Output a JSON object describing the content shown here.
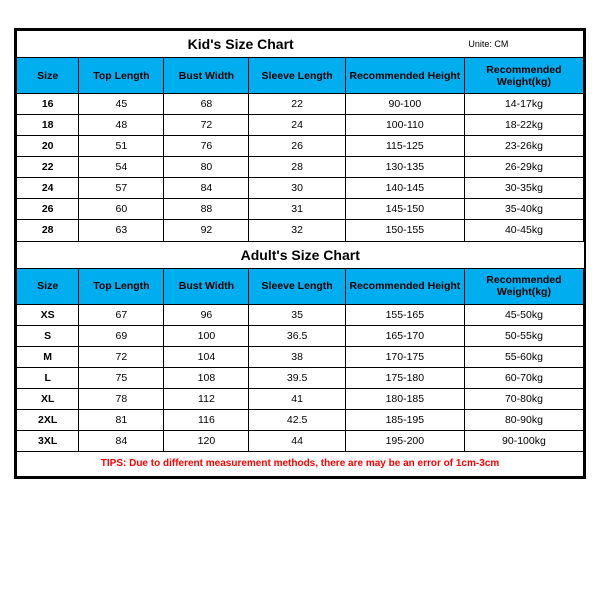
{
  "units_label": "Unite: CM",
  "header_bg": "#00aeef",
  "kids": {
    "title": "Kid's Size Chart",
    "columns": [
      "Size",
      "Top Length",
      "Bust Width",
      "Sleeve Length",
      "Recommended Height",
      "Recommended Weight(kg)"
    ],
    "rows": [
      [
        "16",
        "45",
        "68",
        "22",
        "90-100",
        "14-17kg"
      ],
      [
        "18",
        "48",
        "72",
        "24",
        "100-110",
        "18-22kg"
      ],
      [
        "20",
        "51",
        "76",
        "26",
        "115-125",
        "23-26kg"
      ],
      [
        "22",
        "54",
        "80",
        "28",
        "130-135",
        "26-29kg"
      ],
      [
        "24",
        "57",
        "84",
        "30",
        "140-145",
        "30-35kg"
      ],
      [
        "26",
        "60",
        "88",
        "31",
        "145-150",
        "35-40kg"
      ],
      [
        "28",
        "63",
        "92",
        "32",
        "150-155",
        "40-45kg"
      ]
    ]
  },
  "adults": {
    "title": "Adult's Size Chart",
    "columns": [
      "Size",
      "Top Length",
      "Bust Width",
      "Sleeve Length",
      "Recommended Height",
      "Recommended Weight(kg)"
    ],
    "rows": [
      [
        "XS",
        "67",
        "96",
        "35",
        "155-165",
        "45-50kg"
      ],
      [
        "S",
        "69",
        "100",
        "36.5",
        "165-170",
        "50-55kg"
      ],
      [
        "M",
        "72",
        "104",
        "38",
        "170-175",
        "55-60kg"
      ],
      [
        "L",
        "75",
        "108",
        "39.5",
        "175-180",
        "60-70kg"
      ],
      [
        "XL",
        "78",
        "112",
        "41",
        "180-185",
        "70-80kg"
      ],
      [
        "2XL",
        "81",
        "116",
        "42.5",
        "185-195",
        "80-90kg"
      ],
      [
        "3XL",
        "84",
        "120",
        "44",
        "195-200",
        "90-100kg"
      ]
    ]
  },
  "tips": "TIPS: Due to different measurement methods, there are may be an error of 1cm-3cm"
}
